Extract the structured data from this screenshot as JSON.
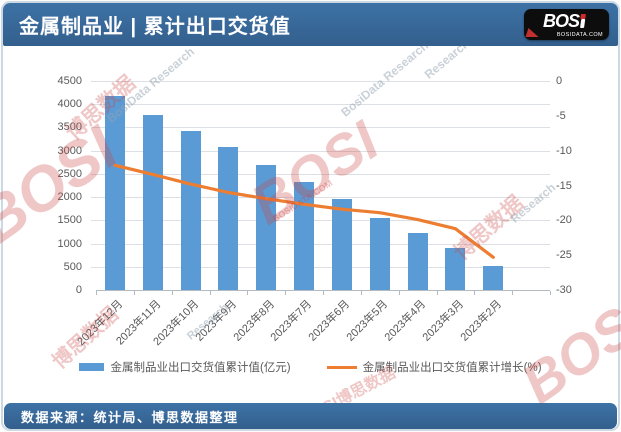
{
  "header": {
    "title": "金属制品业 | 累计出口交货值",
    "logo": {
      "brand": "BOS",
      "brand_i": "i",
      "domain": "BOSIDATA.COM"
    }
  },
  "footer": {
    "source": "数据来源：统计局、博思数据整理"
  },
  "watermark": {
    "brand": "BOSI",
    "brand_cn": "博思数据",
    "brand_combo": "BOSI博思数据",
    "research": "BosiData Research",
    "research_short": "Research",
    "domain": "BOSIDATA.COM"
  },
  "colors": {
    "header_bg": "#38699B",
    "bar": "#5B9BD5",
    "line": "#ED7D31",
    "axis_text": "#595959",
    "gridline": "#DCDFE3"
  },
  "chart_data": {
    "type": "bar",
    "combo": "bar+line dual axis",
    "title": "金属制品业 | 累计出口交货值",
    "categories": [
      "2023年12月",
      "2023年11月",
      "2023年10月",
      "2023年9月",
      "2023年8月",
      "2023年7月",
      "2023年6月",
      "2023年5月",
      "2023年4月",
      "2023年3月",
      "2023年2月"
    ],
    "series": [
      {
        "name": "金属制品业出口交货值累计值(亿元)",
        "type": "bar",
        "axis": "left",
        "color": "#5B9BD5",
        "values": [
          4180,
          3770,
          3430,
          3080,
          2700,
          2330,
          1960,
          1560,
          1230,
          900,
          520
        ]
      },
      {
        "name": "金属制品业出口交货值累计增长(%)",
        "type": "line",
        "axis": "right",
        "color": "#ED7D31",
        "values": [
          -12.1,
          -13.4,
          -14.8,
          -16.0,
          -16.9,
          -17.7,
          -18.4,
          -18.9,
          -19.9,
          -21.2,
          -25.3
        ]
      }
    ],
    "left_axis": {
      "min": 0,
      "max": 4500,
      "step": 500,
      "ticks": [
        0,
        500,
        1000,
        1500,
        2000,
        2500,
        3000,
        3500,
        4000,
        4500
      ]
    },
    "right_axis": {
      "min": -30,
      "max": 0,
      "step": -5,
      "ticks": [
        0,
        -5,
        -10,
        -15,
        -20,
        -25,
        -30
      ]
    },
    "grid": true,
    "legend_position": "bottom",
    "x_slot_count": 12
  }
}
